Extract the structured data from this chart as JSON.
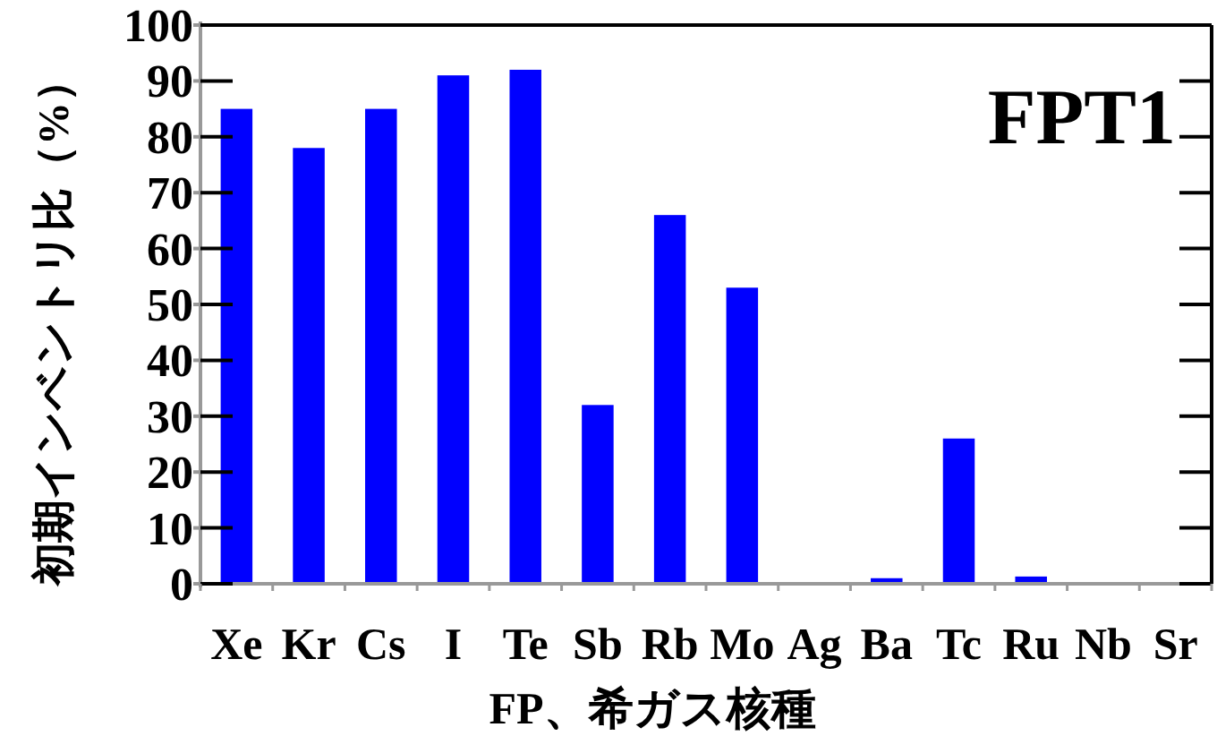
{
  "chart_data": {
    "type": "bar",
    "xlabel": "FP、希ガス核種",
    "ylabel": "初期インベントリ比（%）",
    "categories": [
      "Xe",
      "Kr",
      "Cs",
      "I",
      "Te",
      "Sb",
      "Rb",
      "Mo",
      "Ag",
      "Ba",
      "Tc",
      "Ru",
      "Nb",
      "Sr"
    ],
    "values": [
      85,
      78,
      85,
      91,
      92,
      32,
      66,
      53,
      0,
      1,
      26,
      1.3,
      0,
      0
    ],
    "color": "#0000ff",
    "ylim": [
      0,
      100
    ],
    "yticks": [
      0,
      10,
      20,
      30,
      40,
      50,
      60,
      70,
      80,
      90,
      100
    ],
    "grid": false,
    "annotations": [
      "FPT1"
    ]
  }
}
